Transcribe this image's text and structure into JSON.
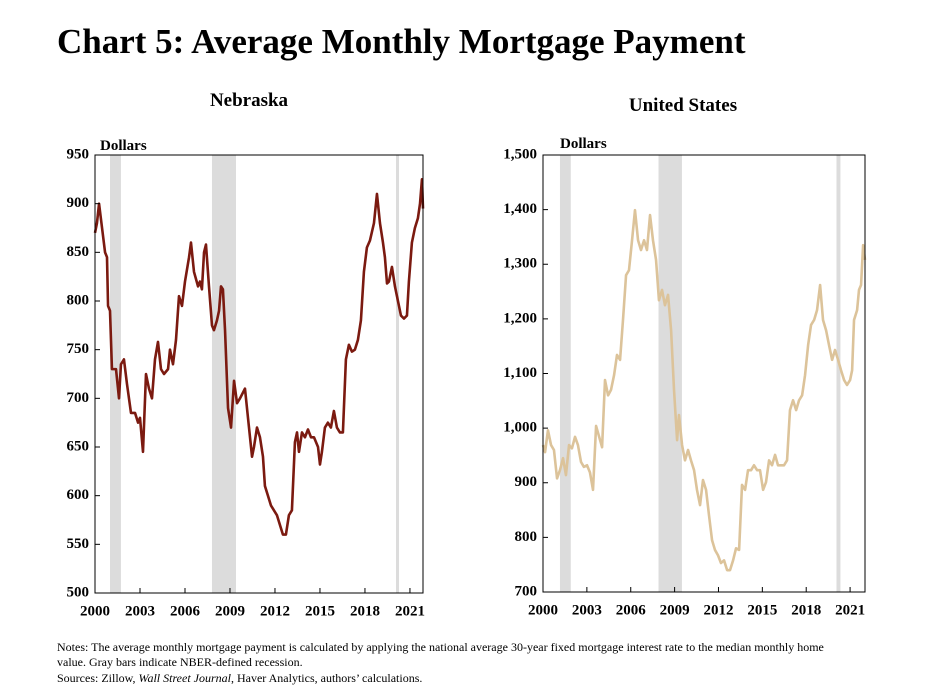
{
  "title": "Chart 5: Average Monthly Mortgage Payment",
  "notes": [
    "Notes: The average monthly mortgage payment is calculated by applying the national average 30-year fixed mortgage interest rate to the median monthly home",
    "value.  Gray bars indicate NBER-defined recession."
  ],
  "sources": [
    "Sources: Zillow, ",
    "Wall Street Journal",
    ", Haver Analytics, authors’ calculations."
  ],
  "chart_data": [
    {
      "type": "line",
      "title": "Nebraska",
      "y_label": "Dollars",
      "color": "#7b1a10",
      "recession_color": "#dcdcdc",
      "recessions": [
        [
          2001.0,
          2001.73
        ],
        [
          2007.8,
          2009.4
        ],
        [
          2020.07,
          2020.27
        ]
      ],
      "xlim": [
        2000,
        2021.87
      ],
      "xticks": [
        2000,
        2003,
        2006,
        2009,
        2012,
        2015,
        2018,
        2021
      ],
      "ylim": [
        500,
        950
      ],
      "yticks": [
        500,
        550,
        600,
        650,
        700,
        750,
        800,
        850,
        900,
        950
      ],
      "x": [
        2000,
        2000.13,
        2000.27,
        2000.47,
        2000.67,
        2000.8,
        2000.87,
        2001.0,
        2001.13,
        2001.4,
        2001.6,
        2001.73,
        2001.93,
        2002.13,
        2002.4,
        2002.67,
        2002.87,
        2003.0,
        2003.2,
        2003.4,
        2003.6,
        2003.8,
        2004.0,
        2004.2,
        2004.4,
        2004.6,
        2004.87,
        2005.0,
        2005.2,
        2005.4,
        2005.6,
        2005.8,
        2006.0,
        2006.27,
        2006.4,
        2006.6,
        2006.87,
        2007.0,
        2007.13,
        2007.27,
        2007.4,
        2007.6,
        2007.8,
        2007.93,
        2008.13,
        2008.27,
        2008.4,
        2008.53,
        2008.67,
        2008.87,
        2009.07,
        2009.27,
        2009.47,
        2009.67,
        2010.0,
        2010.2,
        2010.47,
        2010.6,
        2010.8,
        2011.0,
        2011.2,
        2011.33,
        2011.53,
        2011.73,
        2011.93,
        2012.13,
        2012.33,
        2012.53,
        2012.73,
        2012.93,
        2013.13,
        2013.33,
        2013.47,
        2013.6,
        2013.8,
        2014.0,
        2014.2,
        2014.4,
        2014.6,
        2014.87,
        2015.0,
        2015.13,
        2015.33,
        2015.53,
        2015.73,
        2015.93,
        2016.13,
        2016.33,
        2016.53,
        2016.73,
        2016.93,
        2017.13,
        2017.33,
        2017.53,
        2017.73,
        2017.93,
        2018.13,
        2018.33,
        2018.6,
        2018.8,
        2019.0,
        2019.2,
        2019.33,
        2019.47,
        2019.6,
        2019.8,
        2020.0,
        2020.2,
        2020.4,
        2020.6,
        2020.8,
        2020.93,
        2021.13,
        2021.33,
        2021.53,
        2021.67,
        2021.8,
        2021.87
      ],
      "values": [
        870,
        880,
        900,
        875,
        850,
        845,
        795,
        790,
        730,
        730,
        700,
        735,
        740,
        715,
        685,
        685,
        675,
        680,
        645,
        725,
        710,
        700,
        740,
        758,
        730,
        725,
        730,
        750,
        735,
        760,
        805,
        795,
        820,
        845,
        860,
        830,
        815,
        820,
        812,
        850,
        858,
        815,
        775,
        770,
        780,
        790,
        815,
        812,
        770,
        690,
        670,
        718,
        695,
        700,
        710,
        680,
        640,
        650,
        670,
        660,
        640,
        610,
        600,
        590,
        585,
        580,
        570,
        560,
        560,
        580,
        585,
        655,
        665,
        645,
        665,
        660,
        668,
        660,
        660,
        650,
        632,
        645,
        670,
        675,
        670,
        687,
        670,
        665,
        665,
        740,
        755,
        748,
        750,
        760,
        780,
        830,
        855,
        862,
        880,
        910,
        880,
        860,
        845,
        818,
        820,
        835,
        815,
        800,
        785,
        782,
        785,
        820,
        860,
        875,
        885,
        900,
        925,
        895
      ]
    },
    {
      "type": "line",
      "title": "United States",
      "y_label": "Dollars",
      "color": "#dcc39a",
      "recession_color": "#dcdcdc",
      "recessions": [
        [
          2001.16,
          2001.9
        ],
        [
          2007.9,
          2009.5
        ],
        [
          2020.07,
          2020.34
        ]
      ],
      "xlim": [
        2000,
        2022.02
      ],
      "xticks": [
        2000,
        2003,
        2006,
        2009,
        2012,
        2015,
        2018,
        2021
      ],
      "ylim": [
        700,
        1500
      ],
      "yticks": [
        700,
        800,
        900,
        {
          "value": 1000,
          "label": "1,000"
        },
        {
          "value": 1100,
          "label": "1,100"
        },
        {
          "value": 1200,
          "label": "1,200"
        },
        {
          "value": 1300,
          "label": "1,300"
        },
        {
          "value": 1400,
          "label": "1,400"
        },
        {
          "value": 1500,
          "label": "1,500"
        }
      ],
      "x": [
        2000,
        2000.14,
        2000.34,
        2000.55,
        2000.75,
        2000.96,
        2001.16,
        2001.37,
        2001.57,
        2001.78,
        2001.98,
        2002.19,
        2002.39,
        2002.6,
        2002.8,
        2003.01,
        2003.21,
        2003.42,
        2003.63,
        2003.83,
        2004.04,
        2004.24,
        2004.45,
        2004.65,
        2004.86,
        2005.06,
        2005.27,
        2005.47,
        2005.68,
        2005.88,
        2006.09,
        2006.29,
        2006.5,
        2006.7,
        2006.91,
        2007.11,
        2007.32,
        2007.52,
        2007.73,
        2007.93,
        2008.14,
        2008.34,
        2008.55,
        2008.76,
        2008.96,
        2009.17,
        2009.3,
        2009.51,
        2009.71,
        2009.92,
        2010.12,
        2010.33,
        2010.53,
        2010.74,
        2010.94,
        2011.15,
        2011.35,
        2011.56,
        2011.76,
        2011.97,
        2012.17,
        2012.38,
        2012.59,
        2012.79,
        2013.0,
        2013.2,
        2013.41,
        2013.61,
        2013.82,
        2014.02,
        2014.23,
        2014.43,
        2014.64,
        2014.84,
        2015.05,
        2015.25,
        2015.46,
        2015.66,
        2015.87,
        2016.07,
        2016.28,
        2016.48,
        2016.69,
        2016.89,
        2017.1,
        2017.31,
        2017.51,
        2017.72,
        2017.92,
        2018.13,
        2018.33,
        2018.54,
        2018.74,
        2018.95,
        2019.15,
        2019.36,
        2019.56,
        2019.77,
        2019.97,
        2020.18,
        2020.38,
        2020.59,
        2020.79,
        2021.0,
        2021.14,
        2021.27,
        2021.48,
        2021.61,
        2021.75,
        2021.89,
        2022.02
      ],
      "values": [
        969,
        956,
        996,
        969,
        960,
        908,
        923,
        945,
        914,
        969,
        963,
        984,
        969,
        938,
        929,
        932,
        919,
        887,
        1004,
        985,
        965,
        1088,
        1060,
        1070,
        1097,
        1134,
        1125,
        1198,
        1280,
        1289,
        1344,
        1399,
        1344,
        1326,
        1344,
        1326,
        1390,
        1344,
        1308,
        1234,
        1253,
        1225,
        1244,
        1179,
        1070,
        978,
        1024,
        969,
        941,
        960,
        941,
        923,
        887,
        859,
        905,
        887,
        841,
        795,
        777,
        767,
        753,
        758,
        740,
        740,
        758,
        780,
        777,
        896,
        887,
        923,
        923,
        932,
        923,
        923,
        887,
        901,
        941,
        932,
        951,
        932,
        932,
        932,
        941,
        1033,
        1051,
        1033,
        1051,
        1060,
        1097,
        1152,
        1189,
        1198,
        1216,
        1262,
        1198,
        1179,
        1152,
        1125,
        1143,
        1125,
        1106,
        1088,
        1079,
        1088,
        1106,
        1198,
        1216,
        1253,
        1262,
        1335,
        1308
      ]
    }
  ]
}
